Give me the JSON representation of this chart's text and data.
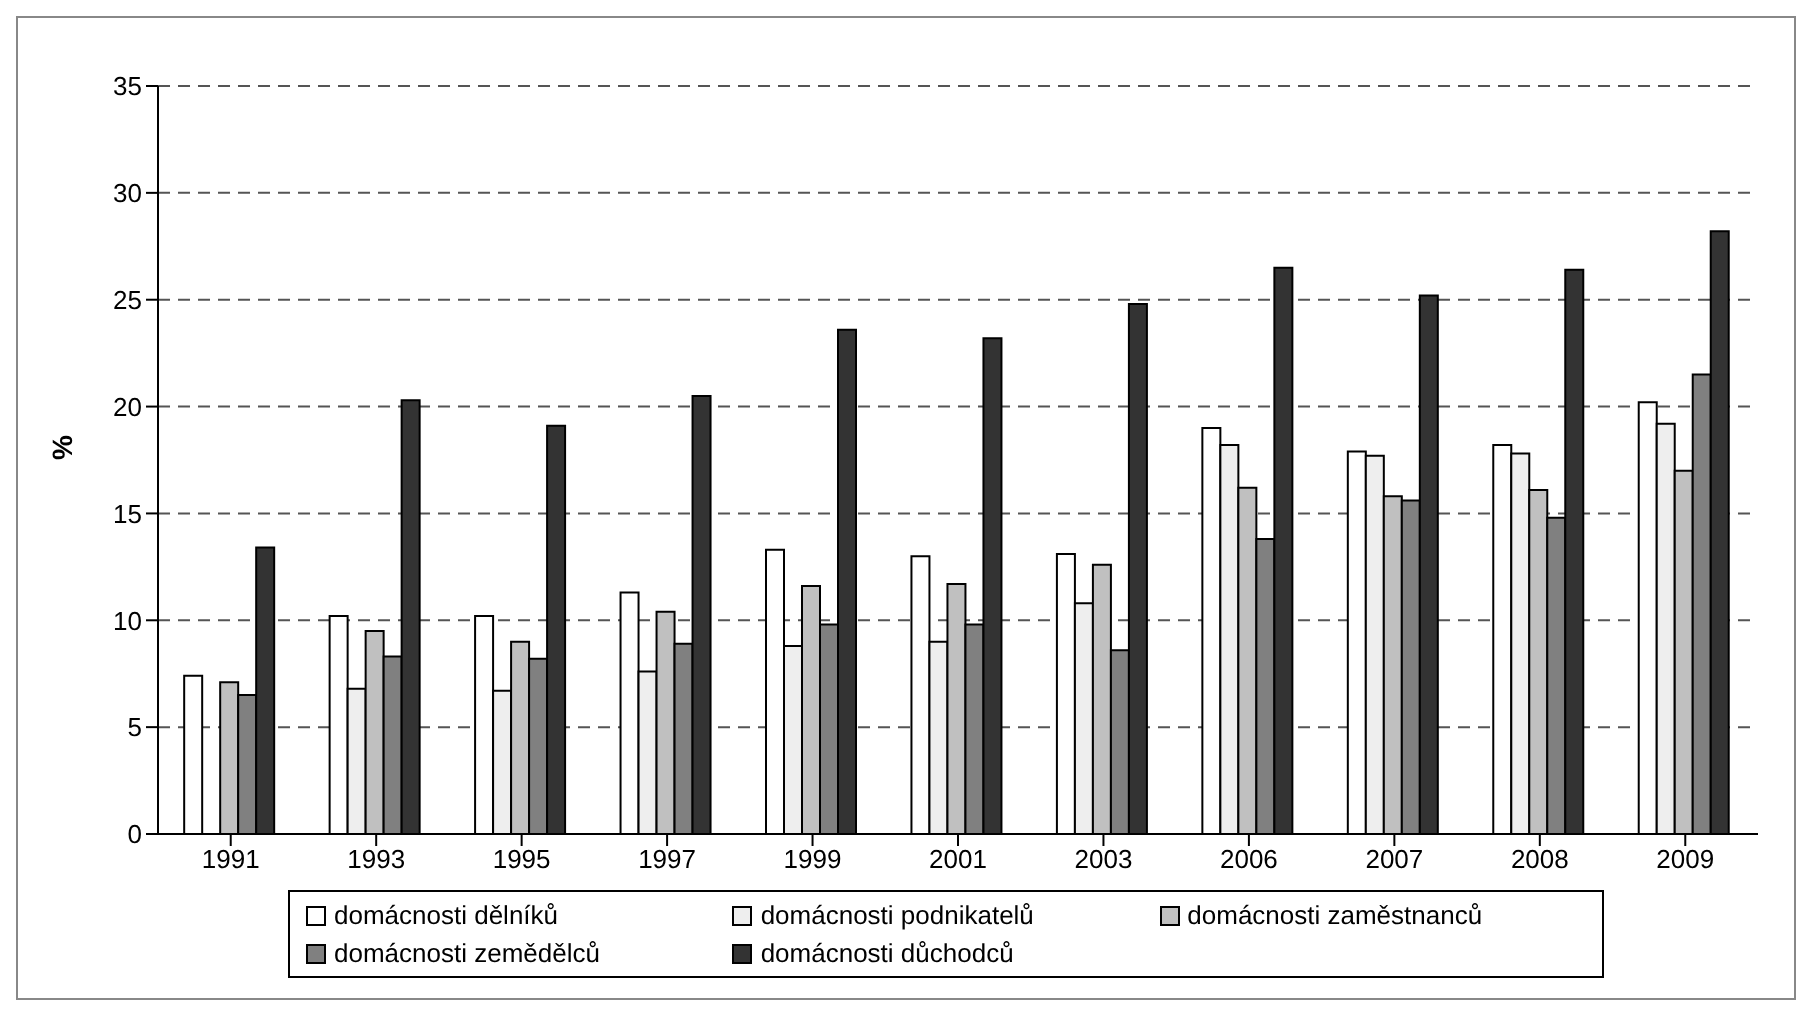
{
  "chart_data": {
    "type": "bar",
    "ylabel": "%",
    "categories": [
      "1991",
      "1993",
      "1995",
      "1997",
      "1999",
      "2001",
      "2003",
      "2006",
      "2007",
      "2008",
      "2009"
    ],
    "series": [
      {
        "name": "domácnosti dělníků",
        "color": "#ffffff",
        "values": [
          7.4,
          10.2,
          10.2,
          11.3,
          13.3,
          13.0,
          13.1,
          19.0,
          17.9,
          18.2,
          20.2
        ]
      },
      {
        "name": "domácnosti podnikatelů",
        "color": "#eeeeee",
        "values": [
          null,
          6.8,
          6.7,
          7.6,
          8.8,
          9.0,
          10.8,
          18.2,
          17.7,
          17.8,
          19.2
        ]
      },
      {
        "name": "domácnosti zaměstnanců",
        "color": "#c0c0c0",
        "values": [
          7.1,
          9.5,
          9.0,
          10.4,
          11.6,
          11.7,
          12.6,
          16.2,
          15.8,
          16.1,
          17.0
        ]
      },
      {
        "name": "domácnosti zemědělců",
        "color": "#808080",
        "values": [
          6.5,
          8.3,
          8.2,
          8.9,
          9.8,
          9.8,
          8.6,
          13.8,
          15.6,
          14.8,
          21.5
        ]
      },
      {
        "name": "domácnosti důchodců",
        "color": "#333333",
        "values": [
          13.4,
          20.3,
          19.1,
          20.5,
          23.6,
          23.2,
          24.8,
          26.5,
          25.2,
          26.4,
          28.2
        ]
      }
    ],
    "ylim": [
      0,
      35
    ],
    "yticks": [
      0,
      5,
      10,
      15,
      20,
      25,
      30,
      35
    ],
    "grid": "y",
    "legend": "bottom"
  }
}
